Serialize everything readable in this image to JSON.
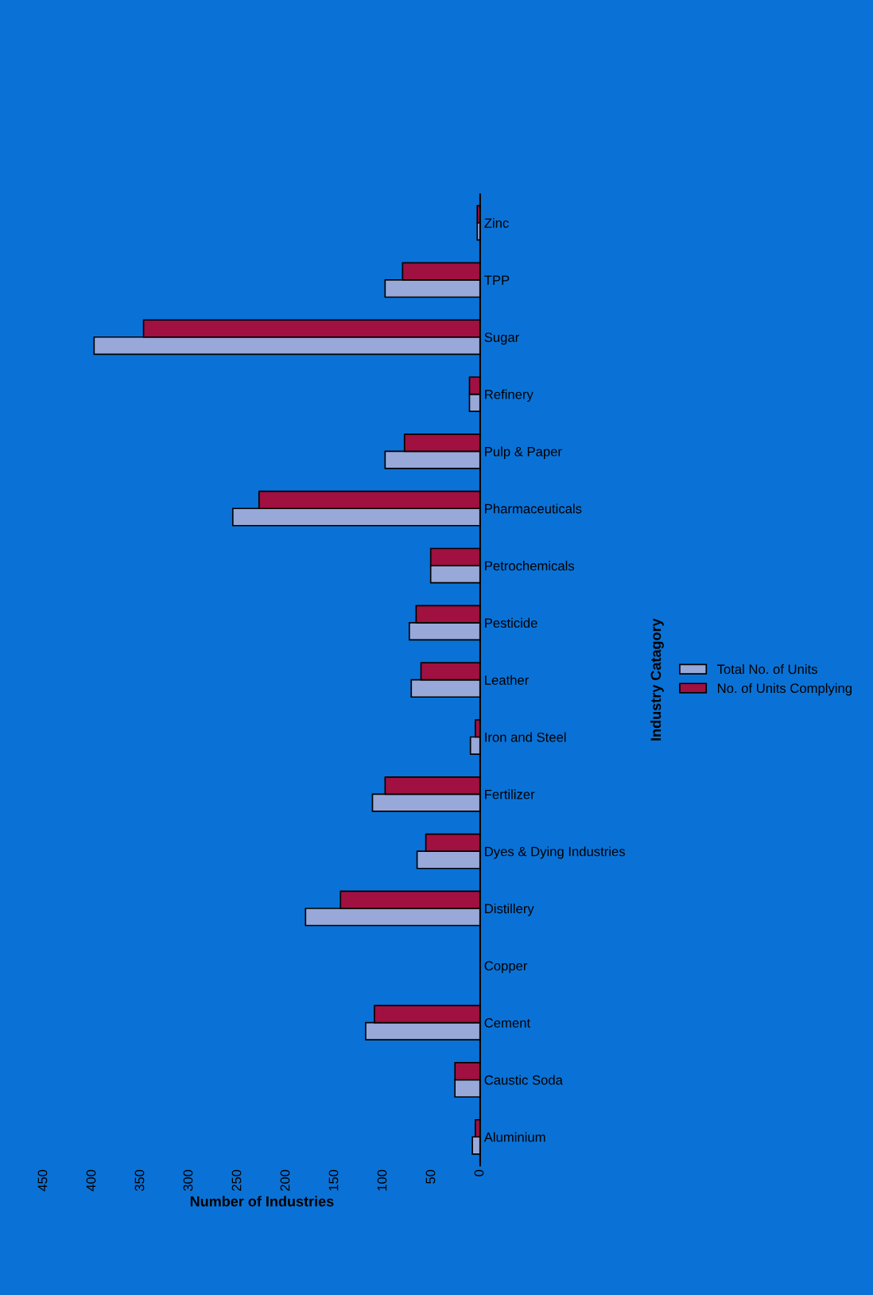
{
  "chart_data": {
    "type": "bar",
    "orientation": "horizontal",
    "xlabel": "Number of Industries",
    "ylabel": "Industry Catagory",
    "categories": [
      "Zinc",
      "TPP",
      "Sugar",
      "Refinery",
      "Pulp & Paper",
      "Pharmaceuticals",
      "Petrochemicals",
      "Pesticide",
      "Leather",
      "Iron and Steel",
      "Fertilizer",
      "Dyes & Dying Industries",
      "Distillery",
      "Copper",
      "Cement",
      "Caustic Soda",
      "Aluminium"
    ],
    "series": [
      {
        "name": "Total No. of Units",
        "color": "#98a8d8",
        "values": [
          3,
          98,
          398,
          11,
          98,
          255,
          51,
          73,
          71,
          10,
          111,
          65,
          180,
          null,
          118,
          26,
          8
        ]
      },
      {
        "name": "No. of Units Complying",
        "color": "#a01040",
        "values": [
          3,
          80,
          347,
          11,
          78,
          228,
          51,
          66,
          61,
          5,
          98,
          56,
          144,
          null,
          109,
          26,
          5
        ]
      }
    ],
    "xlim": [
      450,
      0
    ],
    "xticks": [
      450,
      400,
      350,
      300,
      250,
      200,
      150,
      100,
      50,
      0
    ],
    "grid": false,
    "legend": "right"
  }
}
